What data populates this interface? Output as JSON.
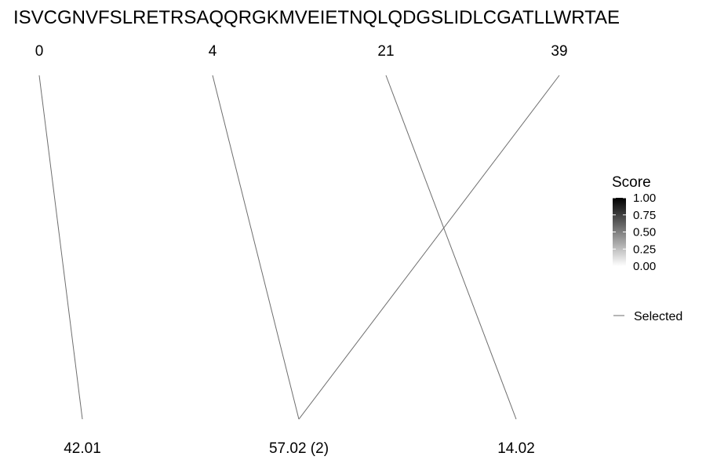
{
  "sequence": "ISVCGNVFSLRETRSAQQRGKMVEIETNQLQDGSLIDLCGATLLWRTAE",
  "top_nodes": [
    {
      "label": "0"
    },
    {
      "label": "4"
    },
    {
      "label": "21"
    },
    {
      "label": "39"
    }
  ],
  "bottom_nodes": [
    {
      "label": "42.01"
    },
    {
      "label": "57.02 (2)"
    },
    {
      "label": "14.02"
    }
  ],
  "links": [
    {
      "from": 0,
      "to": 0
    },
    {
      "from": 1,
      "to": 1
    },
    {
      "from": 2,
      "to": 2
    },
    {
      "from": 3,
      "to": 1
    }
  ],
  "legend": {
    "title": "Score",
    "ticks": [
      "1.00",
      "0.75",
      "0.50",
      "0.25",
      "0.00"
    ],
    "color_high": "#000000",
    "color_low": "#ffffff",
    "selected_label": "Selected",
    "line_color": "#6e6e6e"
  }
}
